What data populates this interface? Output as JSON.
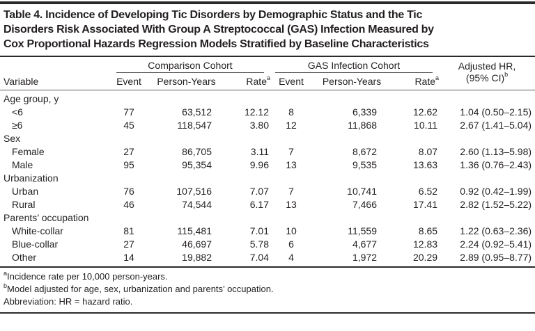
{
  "title": "Table 4. Incidence of Developing Tic Disorders by Demographic Status and the Tic\nDisorders Risk Associated With Group A Streptococcal (GAS) Infection Measured by\nCox Proportional Hazards Regression Models Stratified by Baseline Characteristics",
  "header": {
    "variable": "Variable",
    "group1": "Comparison Cohort",
    "group2": "GAS Infection Cohort",
    "event": "Event",
    "person_years": "Person-Years",
    "rate": "Rate",
    "rate_sup": "a",
    "hr_line1": "Adjusted HR,",
    "hr_line2": "(95% CI)",
    "hr_sup": "b"
  },
  "rows": [
    {
      "section": true,
      "label": "Age group, y"
    },
    {
      "section": false,
      "label": "<6",
      "cells": [
        "77",
        "63,512",
        "12.12",
        "8",
        "6,339",
        "12.62",
        "1.04 (0.50–2.15)"
      ]
    },
    {
      "section": false,
      "label": "≥6",
      "cells": [
        "45",
        "118,547",
        "3.80",
        "12",
        "11,868",
        "10.11",
        "2.67 (1.41–5.04)"
      ]
    },
    {
      "section": true,
      "label": "Sex"
    },
    {
      "section": false,
      "label": "Female",
      "cells": [
        "27",
        "86,705",
        "3.11",
        "7",
        "8,672",
        "8.07",
        "2.60 (1.13–5.98)"
      ]
    },
    {
      "section": false,
      "label": "Male",
      "cells": [
        "95",
        "95,354",
        "9.96",
        "13",
        "9,535",
        "13.63",
        "1.36 (0.76–2.43)"
      ]
    },
    {
      "section": true,
      "label": "Urbanization"
    },
    {
      "section": false,
      "label": "Urban",
      "cells": [
        "76",
        "107,516",
        "7.07",
        "7",
        "10,741",
        "6.52",
        "0.92 (0.42–1.99)"
      ]
    },
    {
      "section": false,
      "label": "Rural",
      "cells": [
        "46",
        "74,544",
        "6.17",
        "13",
        "7,466",
        "17.41",
        "2.82 (1.52–5.22)"
      ]
    },
    {
      "section": true,
      "label": "Parents’ occupation"
    },
    {
      "section": false,
      "label": "White-collar",
      "cells": [
        "81",
        "115,481",
        "7.01",
        "10",
        "11,559",
        "8.65",
        "1.22 (0.63–2.36)"
      ]
    },
    {
      "section": false,
      "label": "Blue-collar",
      "cells": [
        "27",
        "46,697",
        "5.78",
        "6",
        "4,677",
        "12.83",
        "2.24 (0.92–5.41)"
      ]
    },
    {
      "section": false,
      "label": "Other",
      "cells": [
        "14",
        "19,882",
        "7.04",
        "4",
        "1,972",
        "20.29",
        "2.89 (0.95–8.77)"
      ]
    }
  ],
  "footnotes": [
    {
      "sup": "a",
      "text": "Incidence rate per 10,000 person-years."
    },
    {
      "sup": "b",
      "text": "Model adjusted for age, sex, urbanization and parents’ occupation."
    },
    {
      "sup": "",
      "text": "Abbreviation: HR = hazard ratio."
    }
  ],
  "colors": {
    "text": "#231f20",
    "rule_heavy": "#2a2a2a",
    "rule_light": "#555555",
    "background": "#ffffff"
  }
}
